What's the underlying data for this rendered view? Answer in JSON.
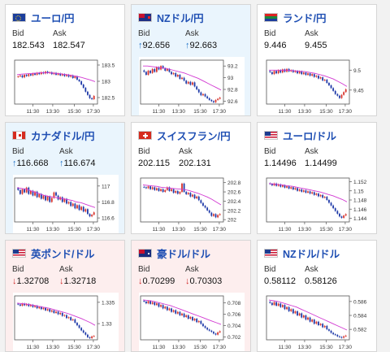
{
  "labels": {
    "bid": "Bid",
    "ask": "Ask"
  },
  "colors": {
    "up_bg": "#eaf5fd",
    "down_bg": "#fdeeee",
    "up_arrow": "#1f72c8",
    "down_arrow": "#d22a2a",
    "candle_up": "#d8342c",
    "candle_down": "#1f3aa8",
    "ma_line": "#d23ad2",
    "title": "#1f4fb3"
  },
  "arrows": {
    "up": "↑",
    "down": "↓"
  },
  "chart_data": [
    {
      "type": "candlestick",
      "title": "ユーロ/円",
      "flag": "eu",
      "state": "none",
      "bid": "182.543",
      "ask": "182.547",
      "x_ticks": [
        "11:30",
        "13:30",
        "15:30",
        "17:30"
      ],
      "y_ticks": [
        "183.5",
        "183",
        "182.5"
      ],
      "ylim": [
        182.3,
        183.65
      ],
      "close": [
        183.15,
        183.18,
        183.12,
        183.2,
        183.16,
        183.22,
        183.18,
        183.24,
        183.2,
        183.26,
        183.22,
        183.28,
        183.24,
        183.3,
        183.25,
        183.28,
        183.22,
        183.26,
        183.2,
        183.24,
        183.18,
        183.22,
        183.16,
        183.2,
        183.14,
        183.18,
        183.1,
        183.15,
        183.05,
        183.0,
        182.9,
        182.8,
        182.68,
        182.58,
        182.48,
        182.45,
        182.55
      ],
      "ma": [
        183.2,
        183.22,
        183.23,
        183.24,
        183.25,
        183.26,
        183.26,
        183.26,
        183.25,
        183.24,
        183.22,
        183.2,
        183.18,
        183.15,
        183.12,
        183.08,
        183.04,
        182.99
      ]
    },
    {
      "type": "candlestick",
      "title": "NZドル/円",
      "flag": "nz",
      "state": "up",
      "bid": "92.656",
      "ask": "92.663",
      "bid_dir": "up",
      "ask_dir": "up",
      "x_ticks": [
        "11:30",
        "13:30",
        "15:30",
        "17:30"
      ],
      "y_ticks": [
        "93.2",
        "93",
        "92.8",
        "92.6"
      ],
      "ylim": [
        92.55,
        93.3
      ],
      "close": [
        93.1,
        93.05,
        93.12,
        93.08,
        93.15,
        93.1,
        93.18,
        93.14,
        93.2,
        93.16,
        93.12,
        93.15,
        93.1,
        93.06,
        93.08,
        93.02,
        93.05,
        92.98,
        93.0,
        92.95,
        92.9,
        92.93,
        92.88,
        92.92,
        92.85,
        92.8,
        92.75,
        92.7,
        92.72,
        92.68,
        92.65,
        92.62,
        92.6,
        92.58,
        92.62,
        92.64,
        92.66
      ],
      "ma": [
        93.2,
        93.2,
        93.19,
        93.18,
        93.17,
        93.16,
        93.14,
        93.12,
        93.1,
        93.08,
        93.05,
        93.02,
        92.99,
        92.95,
        92.91,
        92.87,
        92.83,
        92.79
      ]
    },
    {
      "type": "candlestick",
      "title": "ランド/円",
      "flag": "za",
      "state": "none",
      "bid": "9.446",
      "ask": "9.455",
      "x_ticks": [
        "11:30",
        "13:30",
        "15:30",
        "17:30"
      ],
      "y_ticks": [
        "9.5",
        "9.45"
      ],
      "ylim": [
        9.415,
        9.525
      ],
      "close": [
        9.495,
        9.49,
        9.498,
        9.492,
        9.5,
        9.494,
        9.502,
        9.496,
        9.503,
        9.497,
        9.5,
        9.495,
        9.498,
        9.492,
        9.497,
        9.49,
        9.494,
        9.488,
        9.492,
        9.486,
        9.49,
        9.483,
        9.486,
        9.479,
        9.482,
        9.474,
        9.476,
        9.468,
        9.462,
        9.455,
        9.448,
        9.44,
        9.436,
        9.43,
        9.438,
        9.445,
        9.452
      ],
      "ma": [
        9.5,
        9.5,
        9.5,
        9.5,
        9.5,
        9.499,
        9.498,
        9.497,
        9.496,
        9.494,
        9.492,
        9.489,
        9.486,
        9.482,
        9.478,
        9.472,
        9.466,
        9.459
      ]
    },
    {
      "type": "candlestick",
      "title": "カナダドル/円",
      "flag": "ca",
      "state": "up",
      "bid": "116.668",
      "ask": "116.674",
      "bid_dir": "up",
      "ask_dir": "up",
      "x_ticks": [
        "11:30",
        "13:30",
        "15:30",
        "17:30"
      ],
      "y_ticks": [
        "117",
        "116.8",
        "116.6"
      ],
      "ylim": [
        116.55,
        117.1
      ],
      "close": [
        116.95,
        116.9,
        116.96,
        116.92,
        116.98,
        116.9,
        116.94,
        116.88,
        116.93,
        116.86,
        116.9,
        116.84,
        116.88,
        116.82,
        116.87,
        116.8,
        116.85,
        116.92,
        116.88,
        116.83,
        116.86,
        116.8,
        116.84,
        116.78,
        116.8,
        116.75,
        116.78,
        116.72,
        116.76,
        116.7,
        116.74,
        116.68,
        116.71,
        116.65,
        116.62,
        116.64,
        116.67
      ],
      "ma": [
        116.98,
        116.97,
        116.96,
        116.94,
        116.92,
        116.9,
        116.88,
        116.87,
        116.86,
        116.85,
        116.84,
        116.83,
        116.82,
        116.8,
        116.79,
        116.77,
        116.75,
        116.73
      ]
    },
    {
      "type": "candlestick",
      "title": "スイスフラン/円",
      "flag": "ch",
      "state": "none",
      "bid": "202.115",
      "ask": "202.131",
      "x_ticks": [
        "11:30",
        "13:30",
        "15:30",
        "17:30"
      ],
      "y_ticks": [
        "202.8",
        "202.6",
        "202.4",
        "202.2",
        "202"
      ],
      "ylim": [
        201.95,
        202.9
      ],
      "close": [
        202.7,
        202.68,
        202.72,
        202.66,
        202.7,
        202.64,
        202.68,
        202.62,
        202.66,
        202.6,
        202.64,
        202.7,
        202.62,
        202.66,
        202.58,
        202.62,
        202.56,
        202.6,
        202.78,
        202.6,
        202.55,
        202.58,
        202.5,
        202.54,
        202.46,
        202.5,
        202.42,
        202.36,
        202.3,
        202.26,
        202.2,
        202.15,
        202.08,
        202.12,
        202.05,
        202.1,
        202.12
      ],
      "ma": [
        202.75,
        202.74,
        202.73,
        202.72,
        202.7,
        202.69,
        202.68,
        202.67,
        202.66,
        202.65,
        202.63,
        202.6,
        202.57,
        202.53,
        202.49,
        202.44,
        202.38,
        202.32
      ]
    },
    {
      "type": "candlestick",
      "title": "ユーロ/ドル",
      "flag": "us",
      "state": "none",
      "bid": "1.14496",
      "ask": "1.14499",
      "x_ticks": [
        "11:30",
        "13:30",
        "15:30",
        "17:30"
      ],
      "y_ticks": [
        "1.152",
        "1.15",
        "1.148",
        "1.146",
        "1.144"
      ],
      "ylim": [
        1.1432,
        1.1528
      ],
      "close": [
        1.1515,
        1.1512,
        1.1516,
        1.1511,
        1.1514,
        1.1509,
        1.1512,
        1.1507,
        1.151,
        1.1505,
        1.1508,
        1.1503,
        1.1506,
        1.15,
        1.1503,
        1.1498,
        1.1501,
        1.1496,
        1.1499,
        1.1494,
        1.1497,
        1.1491,
        1.1494,
        1.1488,
        1.1491,
        1.1485,
        1.1487,
        1.148,
        1.1474,
        1.1468,
        1.1462,
        1.1456,
        1.145,
        1.1444,
        1.1441,
        1.1446,
        1.1449
      ],
      "ma": [
        1.1516,
        1.1515,
        1.1514,
        1.1513,
        1.1511,
        1.151,
        1.1508,
        1.1506,
        1.1504,
        1.1502,
        1.15,
        1.1498,
        1.1495,
        1.1492,
        1.1489,
        1.1485,
        1.1481,
        1.1476
      ]
    },
    {
      "type": "candlestick",
      "title": "英ポンド/ドル",
      "flag": "us",
      "state": "down",
      "bid": "1.32708",
      "ask": "1.32718",
      "bid_dir": "down",
      "ask_dir": "down",
      "x_ticks": [
        "11:30",
        "13:30",
        "15:30",
        "17:30"
      ],
      "y_ticks": [
        "1.335",
        "1.33"
      ],
      "ylim": [
        1.3262,
        1.3365
      ],
      "close": [
        1.3345,
        1.3342,
        1.3347,
        1.3343,
        1.3346,
        1.3341,
        1.3344,
        1.3339,
        1.3342,
        1.3336,
        1.3339,
        1.3334,
        1.3337,
        1.3331,
        1.3334,
        1.3328,
        1.3331,
        1.3325,
        1.3328,
        1.3322,
        1.3325,
        1.3318,
        1.332,
        1.3313,
        1.3315,
        1.3308,
        1.331,
        1.3302,
        1.3296,
        1.329,
        1.3284,
        1.3279,
        1.3274,
        1.3268,
        1.3266,
        1.327,
        1.3271
      ],
      "ma": [
        1.3348,
        1.3347,
        1.3346,
        1.3344,
        1.3342,
        1.334,
        1.3338,
        1.3336,
        1.3333,
        1.333,
        1.3327,
        1.3324,
        1.332,
        1.3316,
        1.3312,
        1.3307,
        1.3302,
        1.3296
      ]
    },
    {
      "type": "candlestick",
      "title": "豪ドル/ドル",
      "flag": "au",
      "state": "down",
      "bid": "0.70299",
      "ask": "0.70303",
      "bid_dir": "down",
      "ask_dir": "down",
      "x_ticks": [
        "11:30",
        "13:30",
        "15:30",
        "17:30"
      ],
      "y_ticks": [
        "0.708",
        "0.706",
        "0.704",
        "0.702"
      ],
      "ylim": [
        0.7015,
        0.7092
      ],
      "close": [
        0.7082,
        0.7079,
        0.7083,
        0.7078,
        0.7081,
        0.7076,
        0.7079,
        0.7073,
        0.7076,
        0.707,
        0.7073,
        0.7067,
        0.707,
        0.7064,
        0.7067,
        0.7061,
        0.7064,
        0.7058,
        0.7061,
        0.7055,
        0.7058,
        0.7052,
        0.7055,
        0.7049,
        0.7052,
        0.7046,
        0.7048,
        0.7043,
        0.7039,
        0.7036,
        0.7033,
        0.7031,
        0.7029,
        0.7026,
        0.7024,
        0.7028,
        0.703
      ],
      "ma": [
        0.7085,
        0.7084,
        0.7083,
        0.7081,
        0.7079,
        0.7077,
        0.7075,
        0.7072,
        0.7069,
        0.7066,
        0.7063,
        0.706,
        0.7057,
        0.7054,
        0.7051,
        0.7048,
        0.7045,
        0.7042
      ]
    },
    {
      "type": "candlestick",
      "title": "NZドル/ドル",
      "flag": "us",
      "state": "none",
      "bid": "0.58112",
      "ask": "0.58126",
      "x_ticks": [
        "11:30",
        "13:30",
        "15:30",
        "17:30"
      ],
      "y_ticks": [
        "0.586",
        "0.584",
        "0.582"
      ],
      "ylim": [
        0.5805,
        0.5868
      ],
      "close": [
        0.5858,
        0.5855,
        0.5859,
        0.5854,
        0.5857,
        0.5852,
        0.5855,
        0.5849,
        0.5852,
        0.5846,
        0.5849,
        0.5843,
        0.5846,
        0.584,
        0.5843,
        0.5837,
        0.584,
        0.5834,
        0.5837,
        0.5831,
        0.5834,
        0.5828,
        0.5831,
        0.5826,
        0.5828,
        0.5823,
        0.5825,
        0.582,
        0.5818,
        0.5815,
        0.5813,
        0.5812,
        0.581,
        0.5809,
        0.5808,
        0.581,
        0.5811
      ],
      "ma": [
        0.5862,
        0.5861,
        0.586,
        0.5858,
        0.5856,
        0.5854,
        0.5852,
        0.5849,
        0.5846,
        0.5843,
        0.584,
        0.5837,
        0.5834,
        0.5831,
        0.5828,
        0.5825,
        0.5822,
        0.5819
      ]
    }
  ]
}
